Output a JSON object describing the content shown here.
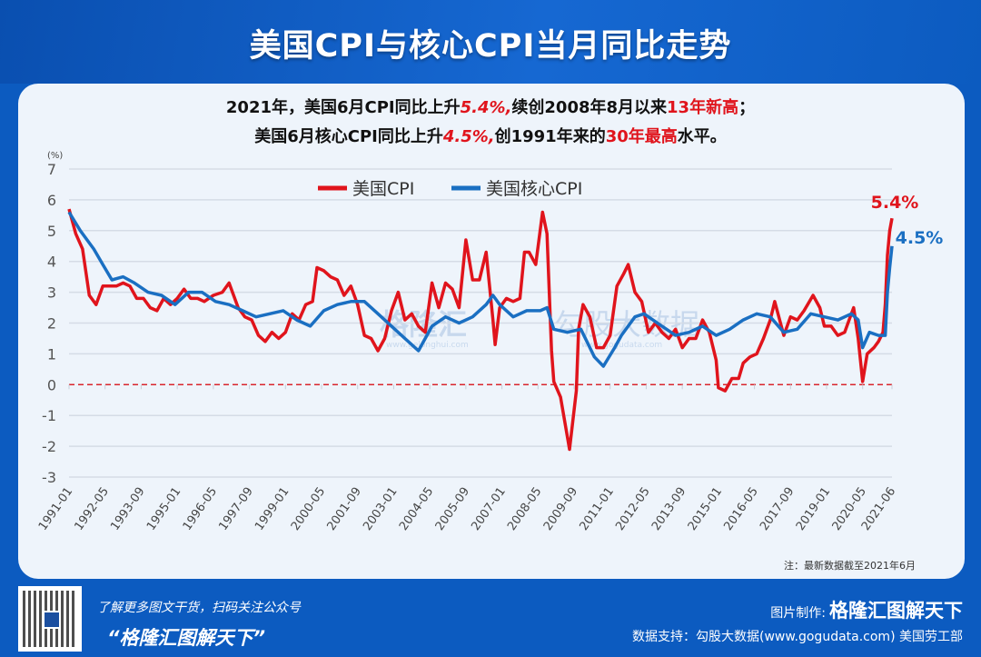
{
  "header": {
    "title": "美国CPI与核心CPI当月同比走势"
  },
  "subtitle": {
    "line1": {
      "a": "2021年，美国6月CPI同比上升",
      "b": "5.4%,",
      "c": "续创2008年8月以来",
      "d": "13年新高",
      "e": "；"
    },
    "line2": {
      "a": "美国6月核心CPI同比上升",
      "b": "4.5%,",
      "c": "创1991年来的",
      "d": "30年最高",
      "e": "水平。"
    }
  },
  "note": "注：最新数据截至2021年6月",
  "footer": {
    "promo": "了解更多图文干货，扫码关注公众号",
    "brand": "“格隆汇图解天下”",
    "made_by_label": "图片制作:",
    "made_by": "格隆汇图解天下",
    "data_support": "数据支持：勾股大数据(www.gogudata.com)  美国劳工部"
  },
  "watermark": {
    "text": "格隆汇",
    "url": "www.gelonghui.com",
    "text2": "勾股大数据",
    "url2": "www.gogudata.com"
  },
  "chart_data": {
    "type": "line",
    "ylabel": "(%)",
    "ylim": [
      -3,
      7
    ],
    "yticks": [
      7,
      6,
      5,
      4,
      3,
      2,
      1,
      0,
      -1,
      -2,
      -3
    ],
    "xlim": [
      "1991-01",
      "2021-06"
    ],
    "xticks": [
      "1991-01",
      "1992-05",
      "1993-09",
      "1995-01",
      "1996-05",
      "1997-09",
      "1999-01",
      "2000-05",
      "2001-09",
      "2003-01",
      "2004-05",
      "2005-09",
      "2007-01",
      "2008-05",
      "2009-09",
      "2011-01",
      "2012-05",
      "2013-09",
      "2015-01",
      "2016-05",
      "2017-09",
      "2019-01",
      "2020-05",
      "2021-06"
    ],
    "grid": true,
    "legend": "top-center",
    "reference_line": {
      "y": 0,
      "style": "dashed",
      "color": "#d9262c"
    },
    "series": [
      {
        "name": "美国CPI",
        "color": "#e0141c",
        "end_label": "5.4%",
        "x": [
          "1991-01",
          "1991-04",
          "1991-07",
          "1991-10",
          "1992-01",
          "1992-04",
          "1992-07",
          "1992-10",
          "1993-01",
          "1993-04",
          "1993-07",
          "1993-10",
          "1994-01",
          "1994-04",
          "1994-07",
          "1994-10",
          "1995-01",
          "1995-04",
          "1995-07",
          "1995-10",
          "1996-01",
          "1996-05",
          "1996-09",
          "1996-12",
          "1997-04",
          "1997-07",
          "1997-10",
          "1998-01",
          "1998-04",
          "1998-07",
          "1998-10",
          "1999-01",
          "1999-04",
          "1999-07",
          "1999-10",
          "2000-01",
          "2000-03",
          "2000-06",
          "2000-09",
          "2000-12",
          "2001-03",
          "2001-06",
          "2001-09",
          "2001-12",
          "2002-03",
          "2002-06",
          "2002-09",
          "2002-12",
          "2003-03",
          "2003-06",
          "2003-09",
          "2003-12",
          "2004-03",
          "2004-06",
          "2004-09",
          "2004-12",
          "2005-03",
          "2005-06",
          "2005-09",
          "2005-12",
          "2006-03",
          "2006-06",
          "2006-09",
          "2006-10",
          "2006-12",
          "2007-03",
          "2007-06",
          "2007-09",
          "2007-11",
          "2008-01",
          "2008-04",
          "2008-07",
          "2008-09",
          "2008-11",
          "2008-12",
          "2009-03",
          "2009-07",
          "2009-10",
          "2009-11",
          "2010-01",
          "2010-04",
          "2010-07",
          "2010-10",
          "2011-01",
          "2011-04",
          "2011-07",
          "2011-09",
          "2011-12",
          "2012-03",
          "2012-06",
          "2012-09",
          "2012-12",
          "2013-03",
          "2013-06",
          "2013-09",
          "2013-12",
          "2014-03",
          "2014-06",
          "2014-09",
          "2014-12",
          "2015-01",
          "2015-04",
          "2015-07",
          "2015-10",
          "2015-12",
          "2016-03",
          "2016-06",
          "2016-09",
          "2016-12",
          "2017-02",
          "2017-06",
          "2017-09",
          "2017-12",
          "2018-03",
          "2018-07",
          "2018-10",
          "2018-12",
          "2019-03",
          "2019-06",
          "2019-09",
          "2019-12",
          "2020-01",
          "2020-03",
          "2020-05",
          "2020-07",
          "2020-10",
          "2020-12",
          "2021-02",
          "2021-03",
          "2021-04",
          "2021-05",
          "2021-06"
        ],
        "values": [
          5.7,
          4.9,
          4.4,
          2.9,
          2.6,
          3.2,
          3.2,
          3.2,
          3.3,
          3.2,
          2.8,
          2.8,
          2.5,
          2.4,
          2.8,
          2.6,
          2.8,
          3.1,
          2.8,
          2.8,
          2.7,
          2.9,
          3.0,
          3.3,
          2.5,
          2.2,
          2.1,
          1.6,
          1.4,
          1.7,
          1.5,
          1.7,
          2.3,
          2.1,
          2.6,
          2.7,
          3.8,
          3.7,
          3.5,
          3.4,
          2.9,
          3.2,
          2.6,
          1.6,
          1.5,
          1.1,
          1.5,
          2.4,
          3.0,
          2.1,
          2.3,
          1.9,
          1.7,
          3.3,
          2.5,
          3.3,
          3.1,
          2.5,
          4.7,
          3.4,
          3.4,
          4.3,
          2.1,
          1.3,
          2.5,
          2.8,
          2.7,
          2.8,
          4.3,
          4.3,
          3.9,
          5.6,
          4.9,
          1.1,
          0.1,
          -0.4,
          -2.1,
          -0.2,
          1.8,
          2.6,
          2.2,
          1.2,
          1.2,
          1.6,
          3.2,
          3.6,
          3.9,
          3.0,
          2.7,
          1.7,
          2.0,
          1.7,
          1.5,
          1.8,
          1.2,
          1.5,
          1.5,
          2.1,
          1.7,
          0.8,
          -0.1,
          -0.2,
          0.2,
          0.2,
          0.7,
          0.9,
          1.0,
          1.5,
          2.1,
          2.7,
          1.6,
          2.2,
          2.1,
          2.4,
          2.9,
          2.5,
          1.9,
          1.9,
          1.6,
          1.7,
          2.3,
          2.5,
          1.5,
          0.1,
          1.0,
          1.2,
          1.4,
          1.7,
          2.6,
          4.2,
          5.0,
          5.4
        ]
      },
      {
        "name": "美国核心CPI",
        "color": "#1a6fc2",
        "end_label": "4.5%",
        "x": [
          "1991-01",
          "1991-06",
          "1991-12",
          "1992-04",
          "1992-08",
          "1993-01",
          "1993-06",
          "1993-12",
          "1994-06",
          "1994-12",
          "1995-06",
          "1995-12",
          "1996-06",
          "1996-12",
          "1997-06",
          "1997-12",
          "1998-06",
          "1998-12",
          "1999-06",
          "1999-12",
          "2000-06",
          "2000-12",
          "2001-06",
          "2001-12",
          "2002-06",
          "2002-12",
          "2003-06",
          "2003-12",
          "2004-06",
          "2004-12",
          "2005-06",
          "2005-12",
          "2006-06",
          "2006-09",
          "2006-12",
          "2007-06",
          "2007-12",
          "2008-06",
          "2008-09",
          "2008-12",
          "2009-06",
          "2009-12",
          "2010-06",
          "2010-10",
          "2011-03",
          "2011-06",
          "2011-12",
          "2012-04",
          "2012-12",
          "2013-06",
          "2013-12",
          "2014-06",
          "2014-12",
          "2015-06",
          "2015-12",
          "2016-06",
          "2016-12",
          "2017-06",
          "2017-12",
          "2018-06",
          "2018-12",
          "2019-06",
          "2019-12",
          "2020-03",
          "2020-05",
          "2020-08",
          "2020-12",
          "2021-03",
          "2021-04",
          "2021-05",
          "2021-06"
        ],
        "values": [
          5.6,
          5.0,
          4.4,
          3.9,
          3.4,
          3.5,
          3.3,
          3.0,
          2.9,
          2.6,
          3.0,
          3.0,
          2.7,
          2.6,
          2.4,
          2.2,
          2.3,
          2.4,
          2.1,
          1.9,
          2.4,
          2.6,
          2.7,
          2.7,
          2.3,
          1.9,
          1.5,
          1.1,
          1.9,
          2.2,
          2.0,
          2.2,
          2.6,
          2.9,
          2.6,
          2.2,
          2.4,
          2.4,
          2.5,
          1.8,
          1.7,
          1.8,
          0.9,
          0.6,
          1.2,
          1.6,
          2.2,
          2.3,
          1.9,
          1.6,
          1.7,
          1.9,
          1.6,
          1.8,
          2.1,
          2.3,
          2.2,
          1.7,
          1.8,
          2.3,
          2.2,
          2.1,
          2.3,
          2.1,
          1.2,
          1.7,
          1.6,
          1.6,
          3.0,
          3.8,
          4.5
        ]
      }
    ]
  }
}
